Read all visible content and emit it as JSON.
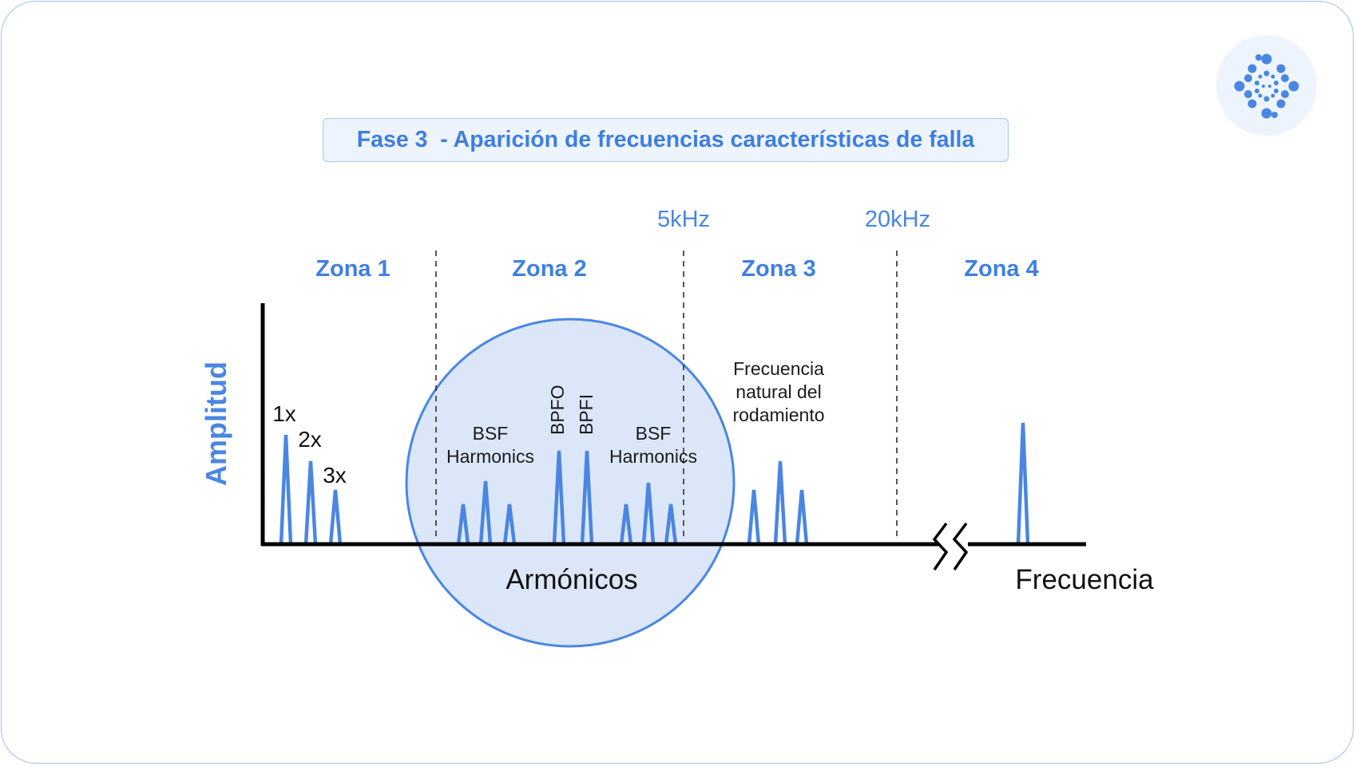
{
  "title": "Fase 3  - Aparición de frecuencias características de falla",
  "zones": [
    "Zona 1",
    "Zona 2",
    "Zona 3",
    "Zona 4"
  ],
  "frequency_markers": [
    "5kHz",
    "20kHz"
  ],
  "axes": {
    "y_label": "Amplitud",
    "x_label": "Frecuencia"
  },
  "orders": [
    "1x",
    "2x",
    "3x"
  ],
  "peak_labels": {
    "bsf_left": [
      "BSF",
      "Harmonics"
    ],
    "bpfo": "BPFO",
    "bpfi": "BPFI",
    "bsf_right": [
      "BSF",
      "Harmonics"
    ],
    "natural_freq": [
      "Frecuencia",
      "natural del",
      "rodamiento"
    ]
  },
  "harmonics_label": "Armónicos",
  "colors": {
    "accent": "#3f80e0",
    "circle_fill": "#dbe7f8",
    "circle_stroke": "#4a86e2",
    "peak": "#4a86e2",
    "axis": "#000000"
  },
  "logo": "dotted-circle-logo-icon"
}
